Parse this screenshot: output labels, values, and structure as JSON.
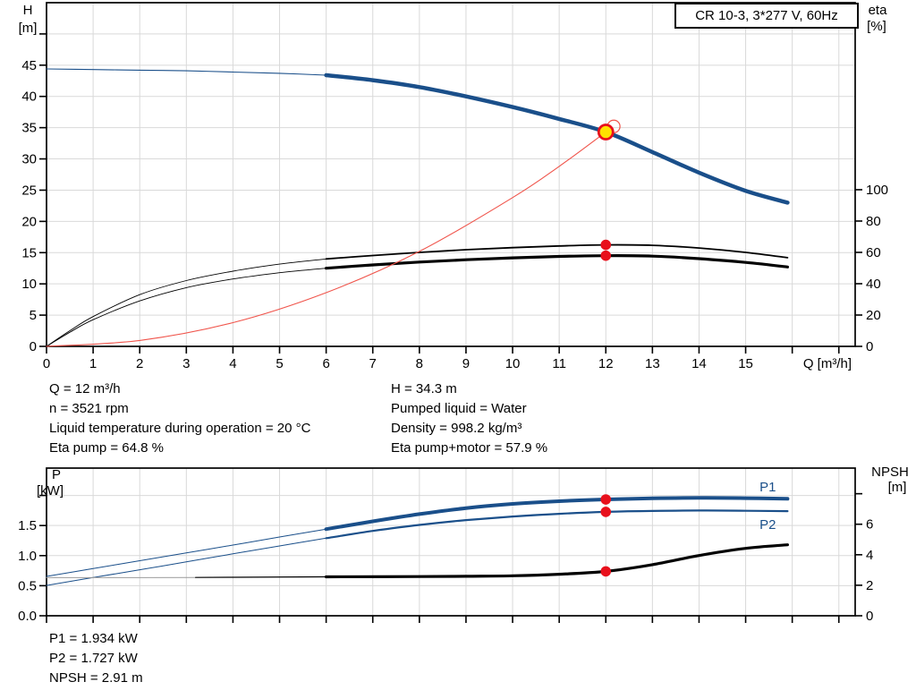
{
  "title_box": {
    "text": "CR 10-3, 3*277 V, 60Hz"
  },
  "colors": {
    "curve_blue": "#1a4f8a",
    "system_curve_red": "#f0544b",
    "dot_red": "#e8101c",
    "duty_yellow": "#ffe100",
    "curve_black": "#000000",
    "npsh_gray": "#9b9b9b",
    "grid": "#d9d9d9",
    "axis": "#000000"
  },
  "annotations": {
    "left": [
      "Q = 12 m³/h",
      "n = 3521 rpm",
      "Liquid temperature during operation = 20 °C",
      "Eta pump = 64.8 %"
    ],
    "right": [
      "H = 34.3 m",
      "Pumped liquid = Water",
      "Density = 998.2 kg/m³",
      "Eta pump+motor = 57.9 %"
    ],
    "bottom": [
      "P1 = 1.934 kW",
      "P2 = 1.727 kW",
      "NPSH = 2.91 m"
    ]
  },
  "operating_point": {
    "Q": 12,
    "H": 34.3,
    "eta_pump": 64.8,
    "eta_pump_motor": 57.9,
    "P1": 1.934,
    "P2": 1.727,
    "NPSH": 2.91
  },
  "chart_data": [
    {
      "id": "qh-chart",
      "type": "line",
      "title": "QH / efficiency curves",
      "x_axis": {
        "label": "Q [m³/h]",
        "min": 0,
        "max": 17.35,
        "ticks": [
          0,
          1,
          2,
          3,
          4,
          5,
          6,
          7,
          8,
          9,
          10,
          11,
          12,
          13,
          14,
          15,
          16,
          17
        ],
        "tick_labels": [
          "0",
          "1",
          "2",
          "3",
          "4",
          "5",
          "6",
          "7",
          "8",
          "9",
          "10",
          "11",
          "12",
          "13",
          "14",
          "15"
        ],
        "grid": [
          1,
          2,
          3,
          4,
          5,
          6,
          7,
          8,
          9,
          10,
          11,
          12,
          13,
          14,
          15,
          16,
          17
        ]
      },
      "y_left": {
        "label": [
          "H",
          "[m]"
        ],
        "min": 0,
        "max": 55,
        "ticks": [
          0,
          5,
          10,
          15,
          20,
          25,
          30,
          35,
          40,
          45,
          50
        ],
        "tick_labels": [
          "0",
          "5",
          "10",
          "15",
          "20",
          "25",
          "30",
          "35",
          "40",
          "45"
        ],
        "grid": [
          5,
          10,
          15,
          20,
          25,
          30,
          35,
          40,
          45,
          50
        ]
      },
      "y_right": {
        "label": [
          "eta",
          "[%]"
        ],
        "min": 0,
        "max": 219.4,
        "ticks": [
          0,
          20,
          40,
          60,
          80,
          100
        ],
        "tick_labels": [
          "0",
          "20",
          "40",
          "60",
          "80",
          "100"
        ]
      },
      "series": [
        {
          "name": "eta-pump-curve",
          "axis": "right",
          "color": "#000000",
          "points": [
            [
              0,
              0
            ],
            [
              0.5,
              10
            ],
            [
              1,
              19
            ],
            [
              2,
              33
            ],
            [
              3,
              42
            ],
            [
              4,
              48
            ],
            [
              5,
              52.5
            ],
            [
              6,
              55.8
            ],
            [
              7,
              58
            ],
            [
              8,
              60
            ],
            [
              9,
              61.7
            ],
            [
              10,
              63
            ],
            [
              11,
              64.1
            ],
            [
              12,
              64.8
            ],
            [
              13,
              64.5
            ],
            [
              14,
              62.8
            ],
            [
              15,
              60
            ],
            [
              15.9,
              56.6
            ]
          ],
          "parts": [
            {
              "from": 0,
              "to": 6,
              "w": 0.9
            },
            {
              "from": 6,
              "to": 15.9,
              "w": 1.8
            }
          ]
        },
        {
          "name": "eta-pump-motor-curve",
          "axis": "right",
          "color": "#000000",
          "points": [
            [
              0,
              0
            ],
            [
              0.5,
              9
            ],
            [
              1,
              17
            ],
            [
              2,
              29
            ],
            [
              3,
              37.5
            ],
            [
              4,
              43
            ],
            [
              5,
              47
            ],
            [
              6,
              49.9
            ],
            [
              7,
              52
            ],
            [
              8,
              53.8
            ],
            [
              9,
              55.3
            ],
            [
              10,
              56.5
            ],
            [
              11,
              57.4
            ],
            [
              12,
              57.9
            ],
            [
              13,
              57.6
            ],
            [
              14,
              56
            ],
            [
              15,
              53.6
            ],
            [
              15.9,
              50.7
            ]
          ],
          "parts": [
            {
              "from": 0,
              "to": 6,
              "w": 0.9
            },
            {
              "from": 6,
              "to": 15.9,
              "w": 3.2
            }
          ]
        },
        {
          "name": "system-curve",
          "axis": "left",
          "color": "#f0544b",
          "points": [
            [
              0,
              0
            ],
            [
              2,
              0.95
            ],
            [
              4,
              3.8
            ],
            [
              6,
              8.6
            ],
            [
              8,
              15.2
            ],
            [
              10,
              23.8
            ],
            [
              11,
              28.8
            ],
            [
              12,
              34.3
            ]
          ],
          "parts": [
            {
              "from": 0,
              "to": 12,
              "w": 1.1
            }
          ]
        },
        {
          "name": "pump-qh-curve",
          "axis": "left",
          "color": "#1a4f8a",
          "points": [
            [
              0,
              44.4
            ],
            [
              1,
              44.3
            ],
            [
              2,
              44.2
            ],
            [
              3,
              44.1
            ],
            [
              4,
              43.9
            ],
            [
              5,
              43.7
            ],
            [
              6,
              43.4
            ],
            [
              7,
              42.6
            ],
            [
              8,
              41.5
            ],
            [
              9,
              40.0
            ],
            [
              10,
              38.3
            ],
            [
              11,
              36.4
            ],
            [
              12,
              34.3
            ],
            [
              13,
              31.1
            ],
            [
              14,
              27.8
            ],
            [
              15,
              24.9
            ],
            [
              15.9,
              23.0
            ]
          ],
          "parts": [
            {
              "from": 0,
              "to": 6,
              "w": 1.1
            },
            {
              "from": 6,
              "to": 15.9,
              "w": 4.5
            }
          ]
        }
      ],
      "markers": [
        {
          "kind": "ghost",
          "q": 12.17,
          "v": 35.2,
          "axis": "left"
        },
        {
          "kind": "dot",
          "q": 12,
          "v": 64.8,
          "axis": "right"
        },
        {
          "kind": "dot",
          "q": 12,
          "v": 57.9,
          "axis": "right"
        },
        {
          "kind": "duty",
          "q": 12,
          "v": 34.3,
          "axis": "left"
        }
      ],
      "series_labels": []
    },
    {
      "id": "power-npsh-chart",
      "type": "line",
      "title": "Power / NPSH curves",
      "x_axis": {
        "label": "",
        "min": 0,
        "max": 17.35,
        "ticks": [
          0,
          1,
          2,
          3,
          4,
          5,
          6,
          7,
          8,
          9,
          10,
          11,
          12,
          13,
          14,
          15,
          16,
          17
        ],
        "tick_labels": [],
        "grid": [
          1,
          2,
          3,
          4,
          5,
          6,
          7,
          8,
          9,
          10,
          11,
          12,
          13,
          14,
          15,
          16,
          17
        ]
      },
      "y_left": {
        "label": [
          "P",
          "[kW]"
        ],
        "min": 0,
        "max": 2.455,
        "ticks": [
          0,
          0.5,
          1.0,
          1.5,
          2.0
        ],
        "tick_labels": [
          "0.0",
          "0.5",
          "1.0",
          "1.5"
        ],
        "grid": [
          0.5,
          1.0,
          1.5,
          2.0
        ]
      },
      "y_right": {
        "label": [
          "NPSH",
          "[m]"
        ],
        "min": 0,
        "max": 9.68,
        "ticks": [
          0,
          2,
          4,
          6,
          8
        ],
        "tick_labels": [
          "0",
          "2",
          "4",
          "6"
        ]
      },
      "series": [
        {
          "name": "p2-curve",
          "axis": "left",
          "color": "#1a4f8a",
          "points": [
            [
              0,
              0.505
            ],
            [
              1,
              0.635
            ],
            [
              2,
              0.765
            ],
            [
              3,
              0.895
            ],
            [
              4,
              1.03
            ],
            [
              5,
              1.16
            ],
            [
              6,
              1.29
            ],
            [
              7,
              1.41
            ],
            [
              8,
              1.51
            ],
            [
              9,
              1.59
            ],
            [
              10,
              1.65
            ],
            [
              11,
              1.695
            ],
            [
              12,
              1.727
            ],
            [
              13,
              1.743
            ],
            [
              14,
              1.75
            ],
            [
              15,
              1.746
            ],
            [
              15.9,
              1.74
            ]
          ],
          "parts": [
            {
              "from": 0,
              "to": 6,
              "w": 1
            },
            {
              "from": 6,
              "to": 15.9,
              "w": 2.2
            }
          ]
        },
        {
          "name": "p1-curve",
          "axis": "left",
          "color": "#1a4f8a",
          "points": [
            [
              0,
              0.655
            ],
            [
              1,
              0.785
            ],
            [
              2,
              0.915
            ],
            [
              3,
              1.045
            ],
            [
              4,
              1.175
            ],
            [
              5,
              1.31
            ],
            [
              6,
              1.44
            ],
            [
              7,
              1.57
            ],
            [
              8,
              1.69
            ],
            [
              9,
              1.79
            ],
            [
              10,
              1.86
            ],
            [
              11,
              1.905
            ],
            [
              12,
              1.934
            ],
            [
              13,
              1.952
            ],
            [
              14,
              1.96
            ],
            [
              15,
              1.955
            ],
            [
              15.9,
              1.945
            ]
          ],
          "parts": [
            {
              "from": 0,
              "to": 6,
              "w": 1
            },
            {
              "from": 6,
              "to": 15.9,
              "w": 4
            }
          ]
        },
        {
          "name": "npsh-curve",
          "axis": "right",
          "color": "#000000",
          "points": [
            [
              0,
              2.5
            ],
            [
              2,
              2.5
            ],
            [
              4,
              2.52
            ],
            [
              6,
              2.55
            ],
            [
              8,
              2.57
            ],
            [
              9,
              2.59
            ],
            [
              10,
              2.62
            ],
            [
              11,
              2.72
            ],
            [
              12,
              2.91
            ],
            [
              13,
              3.35
            ],
            [
              14,
              3.95
            ],
            [
              15,
              4.42
            ],
            [
              15.9,
              4.65
            ]
          ],
          "parts": [
            {
              "from": 0,
              "to": 3.2,
              "w": 1,
              "color": "#9b9b9b"
            },
            {
              "from": 3.2,
              "to": 6,
              "w": 1.2
            },
            {
              "from": 6,
              "to": 15.9,
              "w": 3.2
            }
          ]
        }
      ],
      "markers": [
        {
          "kind": "dot",
          "q": 12,
          "v": 1.934,
          "axis": "left"
        },
        {
          "kind": "dot",
          "q": 12,
          "v": 1.727,
          "axis": "left"
        },
        {
          "kind": "dot",
          "q": 12,
          "v": 2.91,
          "axis": "right"
        }
      ],
      "series_labels": [
        {
          "text": "P1",
          "q": 15.3,
          "v": 2.07,
          "axis": "left",
          "color": "#1a4f8a"
        },
        {
          "text": "P2",
          "q": 15.3,
          "v": 1.44,
          "axis": "left",
          "color": "#1a4f8a"
        }
      ]
    }
  ]
}
